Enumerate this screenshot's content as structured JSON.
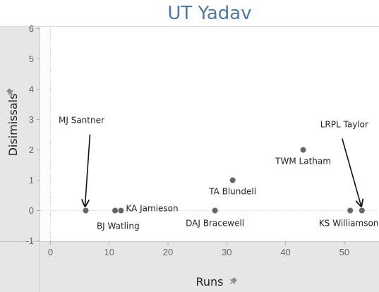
{
  "chart_data": {
    "type": "scatter",
    "title": "UT Yadav",
    "xlabel": "Runs",
    "ylabel": "Disimissals",
    "xlim": [
      -2,
      56
    ],
    "ylim": [
      -1.3,
      6.3
    ],
    "xticks": [
      0,
      10,
      20,
      30,
      40,
      50
    ],
    "yticks": [
      -1,
      0,
      1,
      2,
      3,
      4,
      5,
      6
    ],
    "grid": false,
    "point_color": "#666666",
    "points": [
      {
        "x": 6,
        "y": 0,
        "label": "MJ Santner"
      },
      {
        "x": 11,
        "y": 0,
        "label": "BJ Watling"
      },
      {
        "x": 12,
        "y": 0,
        "label": "KA Jamieson"
      },
      {
        "x": 28,
        "y": 0,
        "label": "DAJ Bracewell"
      },
      {
        "x": 31,
        "y": 1,
        "label": "TA Blundell"
      },
      {
        "x": 43,
        "y": 2,
        "label": "TWM Latham"
      },
      {
        "x": 51,
        "y": 0,
        "label": "KS Williamson"
      },
      {
        "x": 53,
        "y": 0,
        "label": "LRPL Taylor"
      }
    ]
  }
}
